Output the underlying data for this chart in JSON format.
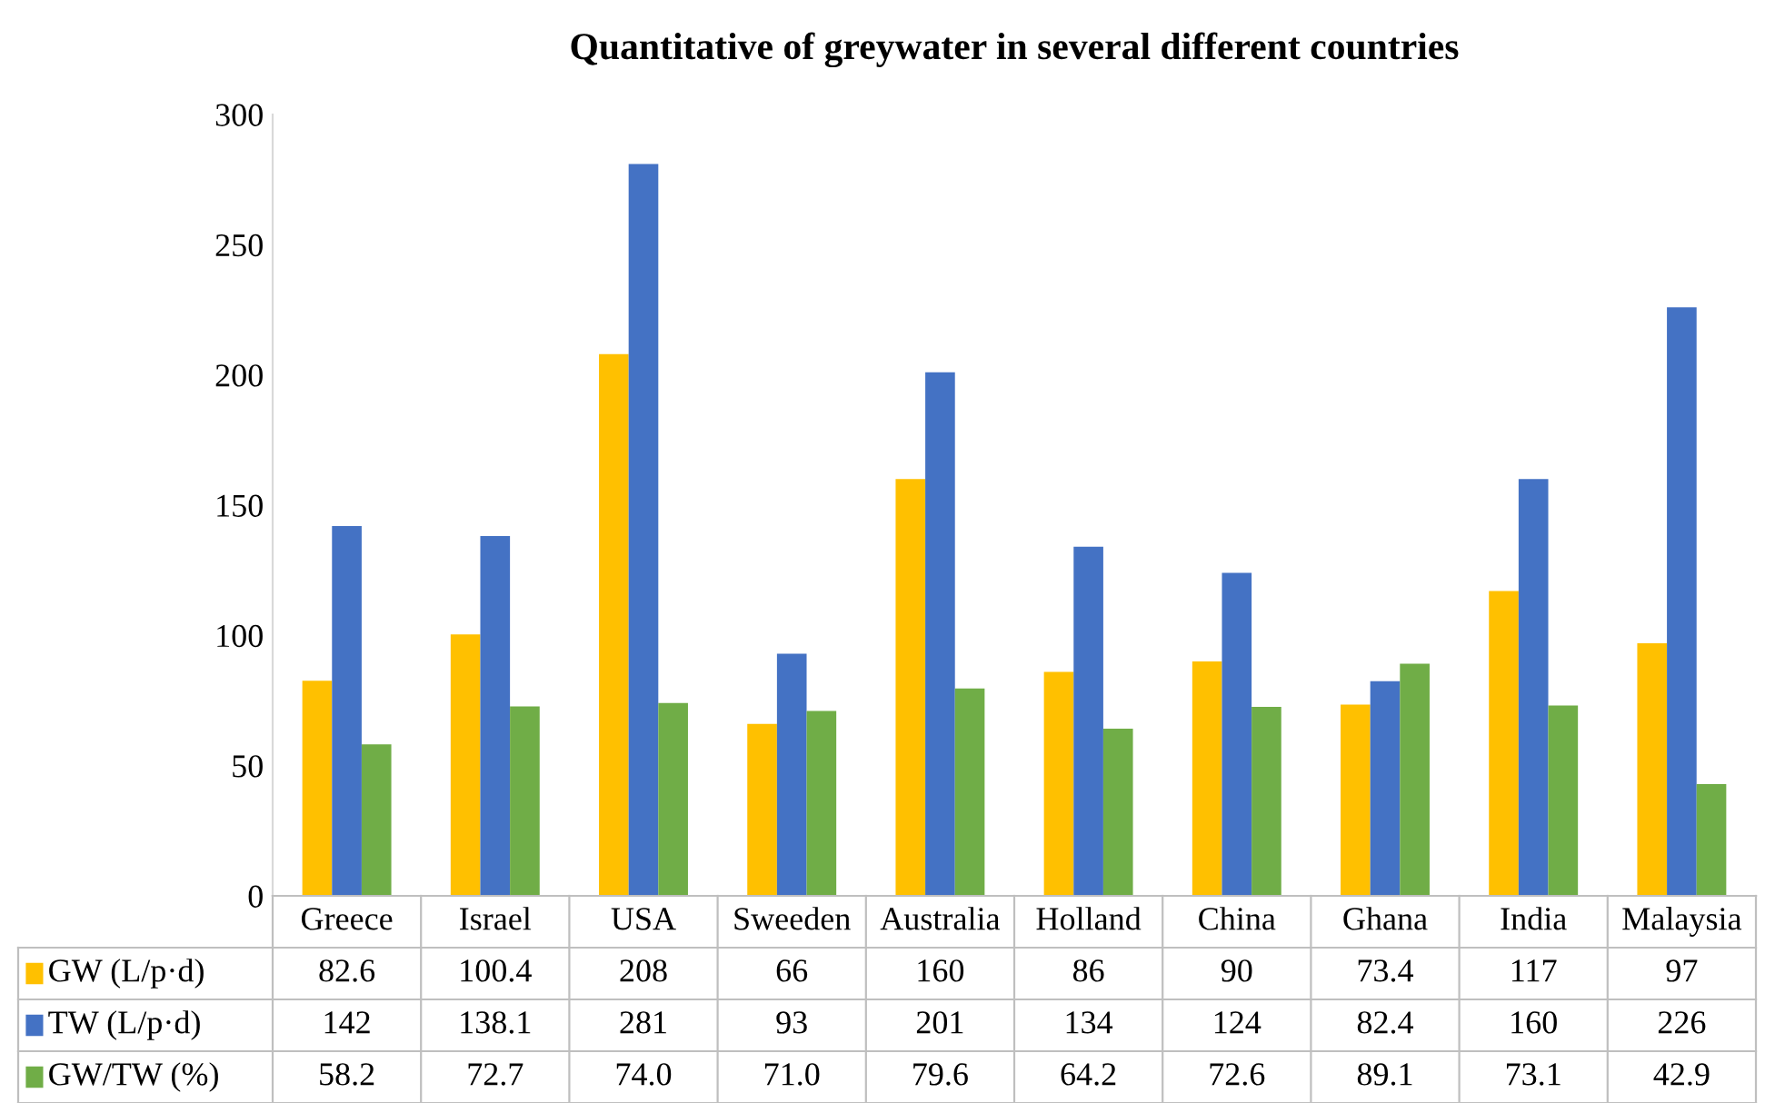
{
  "chart_data": {
    "type": "bar",
    "title": "Quantitative of greywater in several different countries",
    "categories": [
      "Greece",
      "Israel",
      "USA",
      "Sweeden",
      "Australia",
      "Holland",
      "China",
      "Ghana",
      "India",
      "Malaysia"
    ],
    "series": [
      {
        "name": "GW (L/p·d)",
        "color": "#ffc000",
        "values": [
          82.6,
          100.4,
          208,
          66,
          160,
          86,
          90,
          73.4,
          117,
          97
        ],
        "value_labels": [
          "82.6",
          "100.4",
          "208",
          "66",
          "160",
          "86",
          "90",
          "73.4",
          "117",
          "97"
        ]
      },
      {
        "name": "TW (L/p·d)",
        "color": "#4472c4",
        "values": [
          142,
          138.1,
          281,
          93,
          201,
          134,
          124,
          82.4,
          160,
          226
        ],
        "value_labels": [
          "142",
          "138.1",
          "281",
          "93",
          "201",
          "134",
          "124",
          "82.4",
          "160",
          "226"
        ]
      },
      {
        "name": "GW/TW (%)",
        "color": "#70ad47",
        "values": [
          58.2,
          72.7,
          74.0,
          71.0,
          79.6,
          64.2,
          72.6,
          89.1,
          73.1,
          42.9
        ],
        "value_labels": [
          "58.2",
          "72.7",
          "74.0",
          "71.0",
          "79.6",
          "64.2",
          "72.6",
          "89.1",
          "73.1",
          "42.9"
        ]
      }
    ],
    "ylim": [
      0,
      300
    ],
    "yticks": [
      0,
      50,
      100,
      150,
      200,
      250,
      300
    ],
    "grid": false,
    "legend": "bottom"
  }
}
